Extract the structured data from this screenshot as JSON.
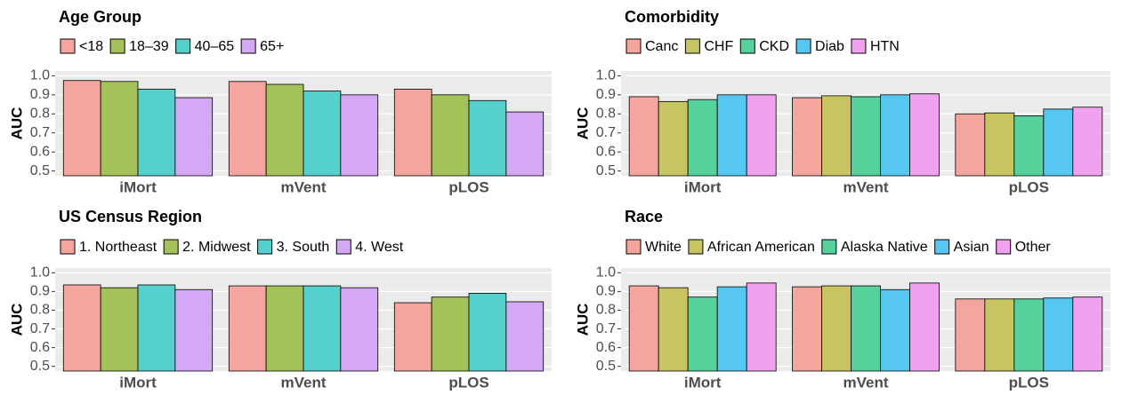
{
  "chart_data": [
    {
      "type": "bar",
      "title": "Age Group",
      "ylabel": "AUC",
      "categories": [
        "iMort",
        "mVent",
        "pLOS"
      ],
      "series": [
        {
          "name": "<18",
          "color": "#f4a69e",
          "values": [
            0.975,
            0.97,
            0.93
          ]
        },
        {
          "name": "18–39",
          "color": "#a3c35a",
          "values": [
            0.97,
            0.955,
            0.9
          ]
        },
        {
          "name": "40–65",
          "color": "#55d0cc",
          "values": [
            0.93,
            0.92,
            0.87
          ]
        },
        {
          "name": "65+",
          "color": "#d4a8f4",
          "values": [
            0.885,
            0.9,
            0.81
          ]
        }
      ],
      "ylim": [
        0.475,
        1.025
      ],
      "yticks": [
        0.5,
        0.6,
        0.7,
        0.8,
        0.9,
        {
          "value": 1,
          "label": "1.0"
        }
      ],
      "grid": true
    },
    {
      "type": "bar",
      "title": "Comorbidity",
      "ylabel": "AUC",
      "categories": [
        "iMort",
        "mVent",
        "pLOS"
      ],
      "series": [
        {
          "name": "Canc",
          "color": "#f4a69e",
          "values": [
            0.89,
            0.885,
            0.8
          ]
        },
        {
          "name": "CHF",
          "color": "#c6c562",
          "values": [
            0.865,
            0.895,
            0.805
          ]
        },
        {
          "name": "CKD",
          "color": "#55d19c",
          "values": [
            0.875,
            0.89,
            0.79
          ]
        },
        {
          "name": "Diab",
          "color": "#55c7f0",
          "values": [
            0.9,
            0.9,
            0.825
          ]
        },
        {
          "name": "HTN",
          "color": "#f0a2ee",
          "values": [
            0.9,
            0.905,
            0.835
          ]
        }
      ],
      "ylim": [
        0.475,
        1.025
      ],
      "yticks": [
        0.5,
        0.6,
        0.7,
        0.8,
        0.9,
        {
          "value": 1,
          "label": "1.0"
        }
      ],
      "grid": true
    },
    {
      "type": "bar",
      "title": "US Census Region",
      "ylabel": "AUC",
      "categories": [
        "iMort",
        "mVent",
        "pLOS"
      ],
      "series": [
        {
          "name": "1. Northeast",
          "color": "#f4a69e",
          "values": [
            0.935,
            0.93,
            0.84
          ]
        },
        {
          "name": "2. Midwest",
          "color": "#a3c35a",
          "values": [
            0.92,
            0.93,
            0.87
          ]
        },
        {
          "name": "3. South",
          "color": "#55d0cc",
          "values": [
            0.935,
            0.93,
            0.89
          ]
        },
        {
          "name": "4. West",
          "color": "#d4a8f4",
          "values": [
            0.91,
            0.92,
            0.845
          ]
        }
      ],
      "ylim": [
        0.475,
        1.025
      ],
      "yticks": [
        0.5,
        0.6,
        0.7,
        0.8,
        0.9,
        {
          "value": 1,
          "label": "1.0"
        }
      ],
      "grid": true
    },
    {
      "type": "bar",
      "title": "Race",
      "ylabel": "AUC",
      "categories": [
        "iMort",
        "mVent",
        "pLOS"
      ],
      "series": [
        {
          "name": "White",
          "color": "#f4a69e",
          "values": [
            0.93,
            0.925,
            0.86
          ]
        },
        {
          "name": "African American",
          "color": "#c6c562",
          "values": [
            0.92,
            0.93,
            0.86
          ]
        },
        {
          "name": "Alaska Native",
          "color": "#55d19c",
          "values": [
            0.87,
            0.93,
            0.86
          ]
        },
        {
          "name": "Asian",
          "color": "#55c7f0",
          "values": [
            0.925,
            0.91,
            0.865
          ]
        },
        {
          "name": "Other",
          "color": "#f0a2ee",
          "values": [
            0.945,
            0.945,
            0.87
          ]
        }
      ],
      "ylim": [
        0.475,
        1.025
      ],
      "yticks": [
        0.5,
        0.6,
        0.7,
        0.8,
        0.9,
        {
          "value": 1,
          "label": "1.0"
        }
      ],
      "grid": true
    }
  ]
}
